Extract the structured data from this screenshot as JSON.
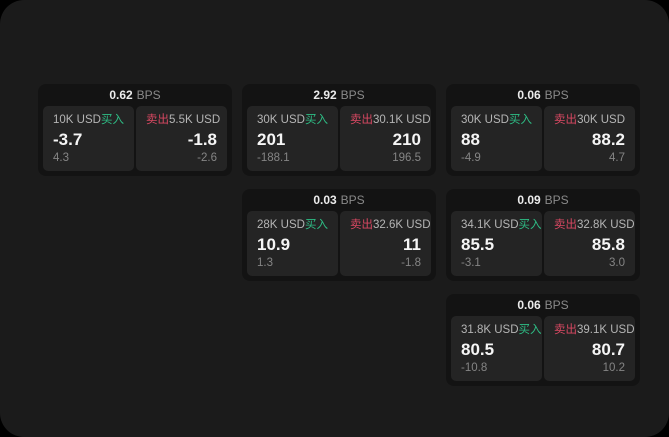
{
  "colors": {
    "buy": "#2ebd85",
    "sell": "#d94862"
  },
  "labels": {
    "buy": "买入",
    "sell": "卖出",
    "bps_unit": "BPS"
  },
  "cards": [
    {
      "bps": "0.62",
      "buy_size": "10K USD",
      "buy_value": "-3.7",
      "buy_delta": "4.3",
      "sell_size": "5.5K USD",
      "sell_value": "-1.8",
      "sell_delta": "-2.6"
    },
    {
      "bps": "2.92",
      "buy_size": "30K USD",
      "buy_value": "201",
      "buy_delta": "-188.1",
      "sell_size": "30.1K USD",
      "sell_value": "210",
      "sell_delta": "196.5"
    },
    {
      "bps": "0.06",
      "buy_size": "30K USD",
      "buy_value": "88",
      "buy_delta": "-4.9",
      "sell_size": "30K USD",
      "sell_value": "88.2",
      "sell_delta": "4.7"
    },
    {
      "bps": "0.03",
      "buy_size": "28K USD",
      "buy_value": "10.9",
      "buy_delta": "1.3",
      "sell_size": "32.6K USD",
      "sell_value": "11",
      "sell_delta": "-1.8"
    },
    {
      "bps": "0.09",
      "buy_size": "34.1K USD",
      "buy_value": "85.5",
      "buy_delta": "-3.1",
      "sell_size": "32.8K USD",
      "sell_value": "85.8",
      "sell_delta": "3.0"
    },
    {
      "bps": "0.06",
      "buy_size": "31.8K USD",
      "buy_value": "80.5",
      "buy_delta": "-10.8",
      "sell_size": "39.1K USD",
      "sell_value": "80.7",
      "sell_delta": "10.2"
    }
  ]
}
